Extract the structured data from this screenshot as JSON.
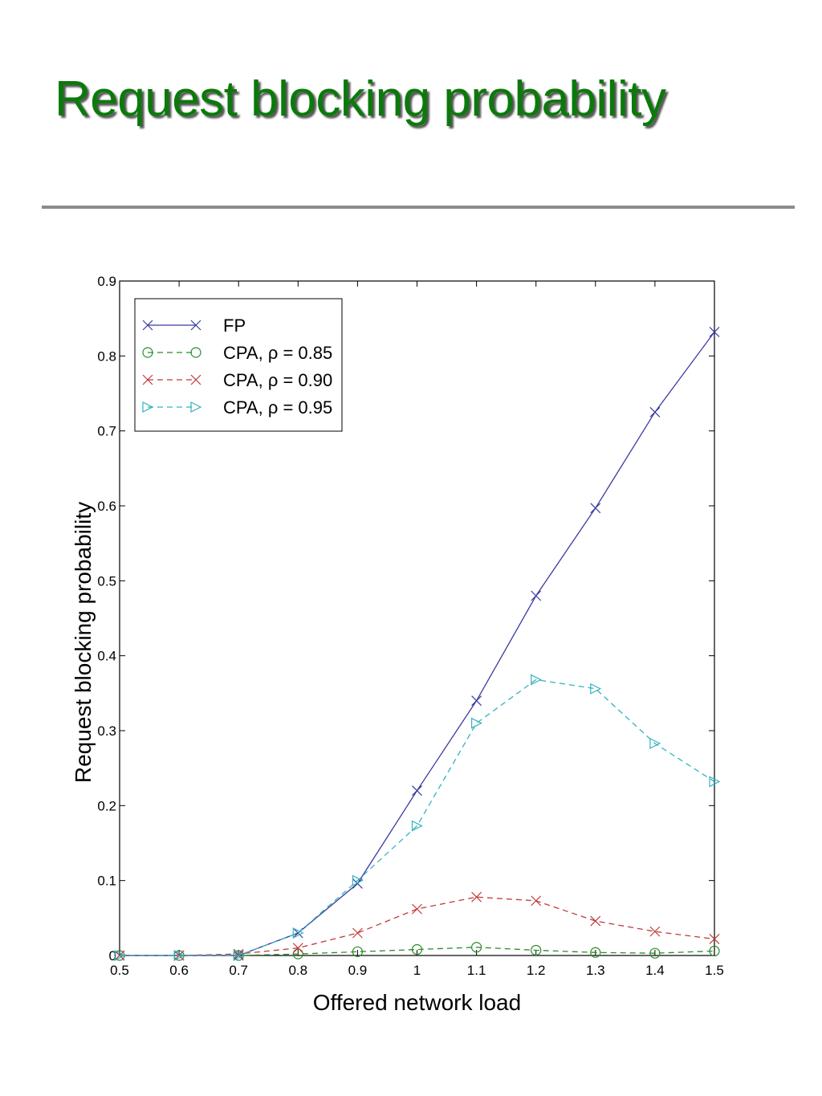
{
  "slide": {
    "title": "Request blocking probability"
  },
  "chart_data": {
    "type": "line",
    "title": "",
    "xlabel": "Offered network load",
    "ylabel": "Request blocking probability",
    "xlim": [
      0.5,
      1.5
    ],
    "ylim": [
      0,
      0.9
    ],
    "x_ticks": [
      "0.5",
      "0.6",
      "0.7",
      "0.8",
      "0.9",
      "1",
      "1.1",
      "1.2",
      "1.3",
      "1.4",
      "1.5"
    ],
    "y_ticks": [
      "0",
      "0.1",
      "0.2",
      "0.3",
      "0.4",
      "0.5",
      "0.6",
      "0.7",
      "0.8",
      "0.9"
    ],
    "grid": false,
    "legend_position": "top-left",
    "x": [
      0.5,
      0.6,
      0.7,
      0.8,
      0.9,
      1.0,
      1.1,
      1.2,
      1.3,
      1.4,
      1.5
    ],
    "series": [
      {
        "name": "FP",
        "color": "#3a3aa0",
        "line": "solid",
        "marker": "x",
        "values": [
          0.0,
          0.0,
          0.0,
          0.03,
          0.096,
          0.22,
          0.34,
          0.48,
          0.597,
          0.725,
          0.832
        ]
      },
      {
        "name": "CPA, ρ = 0.85",
        "color": "#2a8a2a",
        "line": "dashed",
        "marker": "circle",
        "values": [
          0.0,
          0.0,
          0.0,
          0.002,
          0.005,
          0.008,
          0.011,
          0.007,
          0.004,
          0.003,
          0.006
        ]
      },
      {
        "name": "CPA, ρ = 0.90",
        "color": "#c03a3a",
        "line": "dashed",
        "marker": "x",
        "values": [
          0.0,
          0.0,
          0.002,
          0.01,
          0.03,
          0.062,
          0.078,
          0.073,
          0.046,
          0.032,
          0.022
        ]
      },
      {
        "name": "CPA, ρ = 0.95",
        "color": "#35b3c0",
        "line": "dashed",
        "marker": "triangle-right",
        "values": [
          0.0,
          0.0,
          0.0,
          0.03,
          0.1,
          0.173,
          0.31,
          0.368,
          0.356,
          0.283,
          0.232
        ]
      }
    ]
  }
}
